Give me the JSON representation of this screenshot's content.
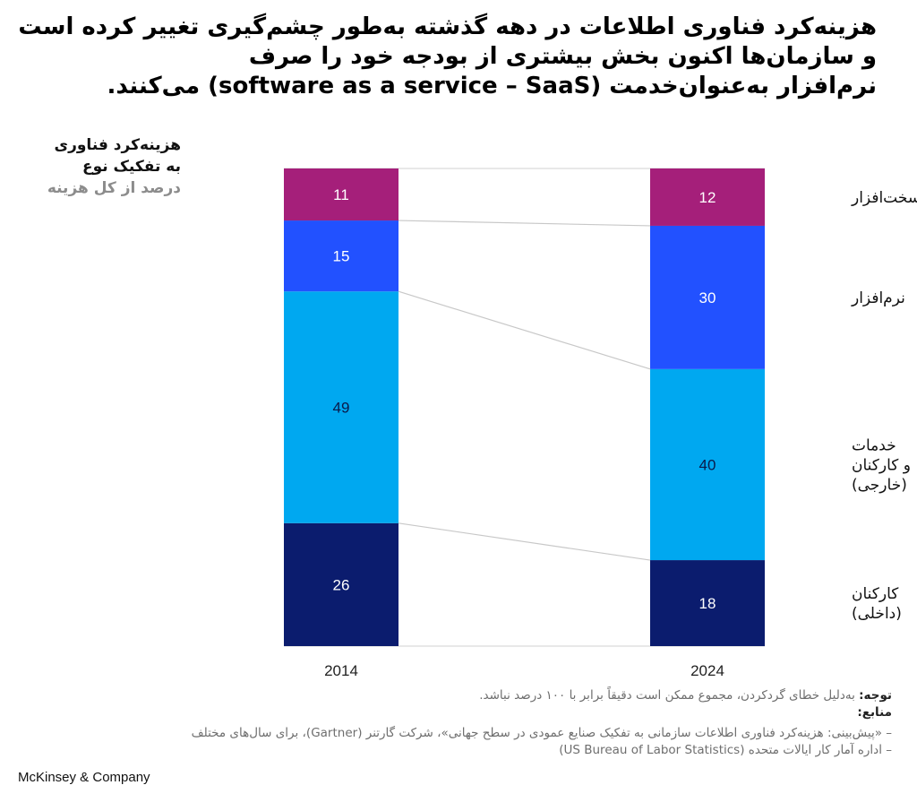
{
  "title_lines": [
    "هزینه‌کرد فناوری اطلاعات در دهه گذشته به‌طور چشم‌گیری تغییر کرده است",
    "و سازمان‌ها اکنون بخش بیشتری از بودجه خود را صرف",
    "نرم‌افزار به‌عنوان‌خدمت (software as a service – SaaS) می‌کنند."
  ],
  "subtitle": {
    "line1": "هزینه‌کرد فناوری",
    "line2": "به تفکیک نوع",
    "line3": "درصد از کل هزینه"
  },
  "chart_data": {
    "type": "bar",
    "stacked": true,
    "normalized_percent": true,
    "categories": [
      "2014",
      "2024"
    ],
    "series": [
      {
        "name": "کارکنان (داخلی)",
        "values": [
          26,
          18
        ],
        "color": "#0b1c6e"
      },
      {
        "name": "خدمات و کارکنان (خارجی)",
        "values": [
          49,
          40
        ],
        "color": "#00a8f0"
      },
      {
        "name": "نرم‌افزار",
        "values": [
          15,
          30
        ],
        "color": "#2251ff"
      },
      {
        "name": "سخت‌افزار",
        "values": [
          11,
          12
        ],
        "color": "#a51f7a"
      }
    ],
    "legend_placement": "right",
    "connector_lines": true
  },
  "legend_labels": [
    {
      "lines": [
        "سخت‌افزار"
      ]
    },
    {
      "lines": [
        "نرم‌افزار"
      ]
    },
    {
      "lines": [
        "خدمات",
        "و کارکنان",
        "(خارجی)"
      ]
    },
    {
      "lines": [
        "کارکنان",
        "(داخلی)"
      ]
    }
  ],
  "notes": {
    "note_label": "توجه:",
    "note_text": " به‌دلیل خطای گردکردن، مجموع ممکن است دقیقاً برابر با ۱۰۰ درصد نباشد.",
    "sources_label": "منابع:",
    "source1": "– «پیش‌بینی: هزینه‌کرد فناوری اطلاعات سازمانی به تفکیک صنایع عمودی در سطح جهانی»، شرکت گارتنر (Gartner)، برای سال‌های مختلف",
    "source2": "– اداره آمار کار ایالات متحده (US Bureau of Labor Statistics)"
  },
  "logo": "McKinsey & Company"
}
